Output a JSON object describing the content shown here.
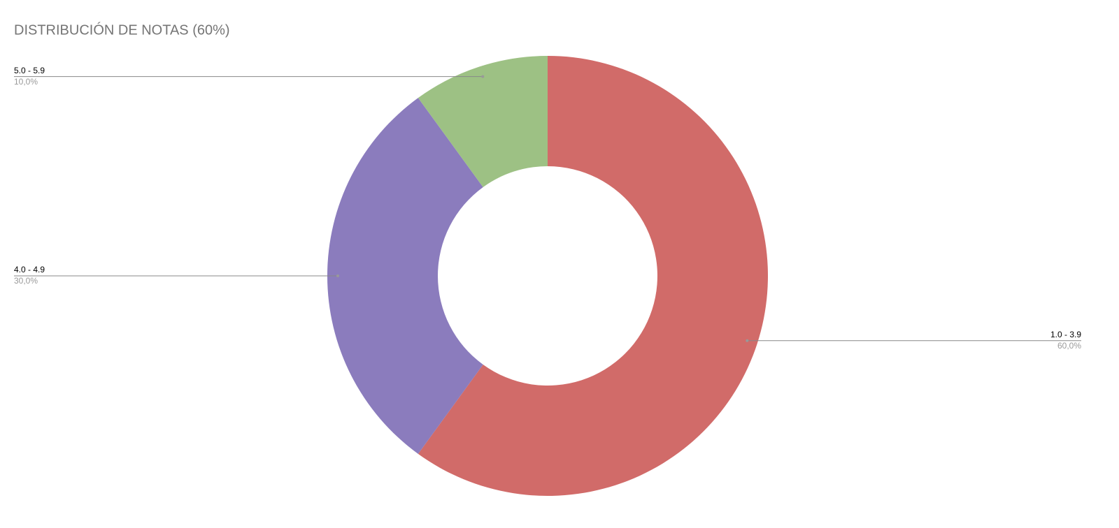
{
  "chart_data": {
    "type": "donut",
    "title": "DISTRIBUCIÓN DE NOTAS (60%)",
    "categories": [
      "1.0 - 3.9",
      "4.0 - 4.9",
      "5.0 - 5.9"
    ],
    "values": [
      60,
      30,
      10
    ],
    "value_labels": [
      "60,0%",
      "30,0%",
      "10,0%"
    ],
    "colors": [
      "#d16b69",
      "#8b7cbd",
      "#9dc184"
    ]
  }
}
